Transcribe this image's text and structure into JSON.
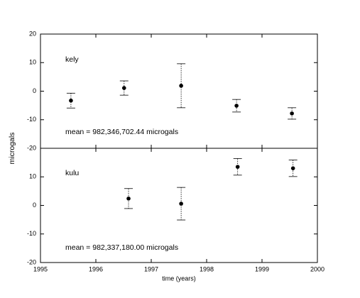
{
  "chart_data": [
    {
      "type": "scatter",
      "ylabel": "microgals",
      "label": "kely",
      "annotation": "mean = 982,346,702.44 microgals",
      "xlim": [
        1995,
        2000
      ],
      "ylim": [
        -20,
        20
      ],
      "yticks": [
        -20,
        -10,
        0,
        10,
        20
      ],
      "series": [
        {
          "name": "kely",
          "color": "#000000",
          "x": [
            1995.55,
            1996.51,
            1997.54,
            1998.54,
            1999.54
          ],
          "values": [
            -3.3,
            1.1,
            1.9,
            -5.1,
            -7.8
          ],
          "errors": [
            2.6,
            2.5,
            7.7,
            2.2,
            2.0
          ]
        }
      ]
    },
    {
      "type": "scatter",
      "xlabel": "time (years)",
      "label": "kulu",
      "annotation": "mean = 982,337,180.00 microgals",
      "xlim": [
        1995,
        2000
      ],
      "ylim": [
        -20,
        20
      ],
      "xticks": [
        1995,
        1996,
        1997,
        1998,
        1999,
        2000
      ],
      "yticks": [
        -20,
        -10,
        0,
        10
      ],
      "series": [
        {
          "name": "kulu",
          "color": "#000000",
          "x": [
            1996.59,
            1997.54,
            1998.56,
            1999.56
          ],
          "values": [
            2.4,
            0.6,
            13.5,
            13.0
          ],
          "errors": [
            3.5,
            5.7,
            2.9,
            2.9
          ]
        }
      ]
    }
  ]
}
